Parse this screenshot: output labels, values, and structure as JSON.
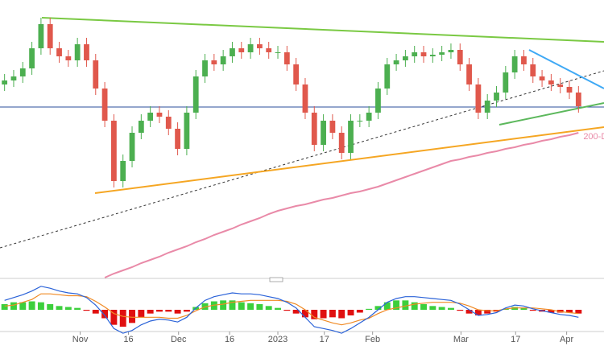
{
  "chart_data": {
    "type": "candlestick",
    "up_color": "#4caf50",
    "down_color": "#e0584c",
    "ylim": [
      0,
      345
    ],
    "xlim": [
      -0.5,
      65.8
    ],
    "xticks": [
      {
        "value": 8.3,
        "label": "Nov"
      },
      {
        "value": 13.6,
        "label": "16"
      },
      {
        "value": 19.1,
        "label": "Dec"
      },
      {
        "value": 24.7,
        "label": "16"
      },
      {
        "value": 30,
        "label": "2023"
      },
      {
        "value": 35.1,
        "label": "17"
      },
      {
        "value": 40.4,
        "label": "Feb"
      },
      {
        "value": 50.1,
        "label": "Mar"
      },
      {
        "value": 56.1,
        "label": "17"
      },
      {
        "value": 61.7,
        "label": "Apr"
      }
    ],
    "open": [
      240,
      245,
      250,
      260,
      285,
      315,
      285,
      275,
      270,
      290,
      270,
      235,
      195,
      120,
      145,
      180,
      195,
      205,
      200,
      185,
      160,
      205,
      250,
      270,
      265,
      275,
      285,
      280,
      290,
      285,
      280,
      280,
      265,
      240,
      205,
      165,
      195,
      180,
      155,
      195,
      195,
      205,
      235,
      265,
      270,
      275,
      280,
      275,
      277,
      280,
      283,
      265,
      240,
      205,
      220,
      230,
      255,
      275,
      265,
      250,
      245,
      240,
      237,
      230
    ],
    "high": [
      253,
      258,
      268,
      293,
      323,
      323,
      293,
      283,
      298,
      298,
      278,
      243,
      203,
      153,
      188,
      203,
      213,
      213,
      208,
      193,
      213,
      258,
      278,
      278,
      283,
      293,
      293,
      298,
      298,
      293,
      288,
      288,
      273,
      248,
      213,
      203,
      203,
      188,
      203,
      203,
      213,
      243,
      273,
      278,
      283,
      288,
      288,
      285,
      288,
      291,
      291,
      273,
      248,
      228,
      238,
      263,
      283,
      283,
      273,
      258,
      253,
      248,
      245,
      238
    ],
    "low": [
      232,
      237,
      242,
      252,
      277,
      277,
      267,
      262,
      262,
      262,
      227,
      187,
      112,
      112,
      137,
      172,
      187,
      192,
      177,
      152,
      152,
      197,
      242,
      257,
      257,
      267,
      272,
      272,
      277,
      272,
      272,
      257,
      232,
      197,
      157,
      157,
      172,
      147,
      147,
      187,
      187,
      197,
      227,
      257,
      262,
      267,
      267,
      267,
      269,
      272,
      257,
      232,
      197,
      197,
      212,
      222,
      247,
      257,
      242,
      237,
      232,
      229,
      222,
      205
    ],
    "close": [
      245,
      250,
      260,
      285,
      315,
      285,
      275,
      270,
      290,
      270,
      235,
      195,
      120,
      145,
      180,
      195,
      205,
      200,
      185,
      160,
      205,
      250,
      270,
      265,
      275,
      285,
      280,
      290,
      285,
      280,
      280,
      265,
      240,
      205,
      165,
      195,
      180,
      155,
      195,
      195,
      205,
      235,
      265,
      270,
      275,
      280,
      275,
      277,
      280,
      283,
      265,
      240,
      205,
      220,
      230,
      255,
      275,
      265,
      250,
      245,
      240,
      237,
      230,
      213
    ],
    "overlay": {
      "label": "200-D",
      "color": "#e98aa8",
      "values": [
        null,
        null,
        null,
        null,
        null,
        null,
        null,
        null,
        null,
        null,
        null,
        0,
        5,
        9,
        13,
        18,
        22,
        26,
        31,
        35,
        39,
        44,
        48,
        53,
        57,
        61,
        66,
        70,
        74,
        79,
        83,
        86,
        89,
        91,
        94,
        97,
        99,
        102,
        105,
        107,
        110,
        113,
        117,
        121,
        125,
        129,
        133,
        137,
        141,
        145,
        147,
        150,
        152,
        155,
        157,
        160,
        162,
        165,
        167,
        170,
        172,
        175,
        177,
        180
      ]
    },
    "macd": {
      "ylim": [
        -30,
        30
      ],
      "pos_color": "#3ccf3c",
      "neg_color": "#e01010",
      "macd_color": "#2a62d8",
      "signal_color": "#f08a24",
      "histogram": [
        6,
        8,
        8,
        9,
        8,
        6,
        4,
        3,
        2,
        -1,
        -4,
        -9,
        -16,
        -18,
        -14,
        -8,
        -4,
        -2,
        -2,
        -4,
        -2,
        3,
        7,
        9,
        10,
        10,
        8,
        7,
        6,
        4,
        2,
        -1,
        -4,
        -8,
        -10,
        -9,
        -8,
        -9,
        -6,
        -3,
        1,
        4,
        8,
        10,
        10,
        8,
        6,
        4,
        3,
        2,
        -1,
        -4,
        -6,
        -4,
        -2,
        1,
        3,
        2,
        -1,
        -2,
        -3,
        -3,
        -3,
        -4
      ],
      "macd": [
        10,
        13,
        16,
        20,
        25,
        23,
        20,
        18,
        17,
        13,
        5,
        -6,
        -20,
        -25,
        -22,
        -16,
        -12,
        -10,
        -11,
        -13,
        -8,
        2,
        10,
        14,
        16,
        18,
        17,
        17,
        16,
        14,
        12,
        8,
        2,
        -8,
        -18,
        -20,
        -22,
        -25,
        -20,
        -14,
        -8,
        0,
        8,
        12,
        14,
        14,
        13,
        12,
        11,
        10,
        6,
        0,
        -6,
        -5,
        -3,
        2,
        5,
        4,
        1,
        -1,
        -3,
        -5,
        -6,
        -8
      ],
      "signal": [
        4,
        5,
        8,
        11,
        17,
        17,
        16,
        15,
        15,
        14,
        9,
        3,
        -4,
        -7,
        -8,
        -8,
        -8,
        -8,
        -9,
        -9,
        -6,
        -1,
        3,
        5,
        6,
        8,
        9,
        10,
        10,
        10,
        10,
        9,
        6,
        0,
        -8,
        -11,
        -14,
        -16,
        -14,
        -11,
        -9,
        -4,
        0,
        2,
        4,
        6,
        7,
        8,
        8,
        8,
        7,
        4,
        0,
        -1,
        -1,
        1,
        2,
        2,
        2,
        1,
        0,
        -2,
        -3,
        -4
      ]
    }
  }
}
